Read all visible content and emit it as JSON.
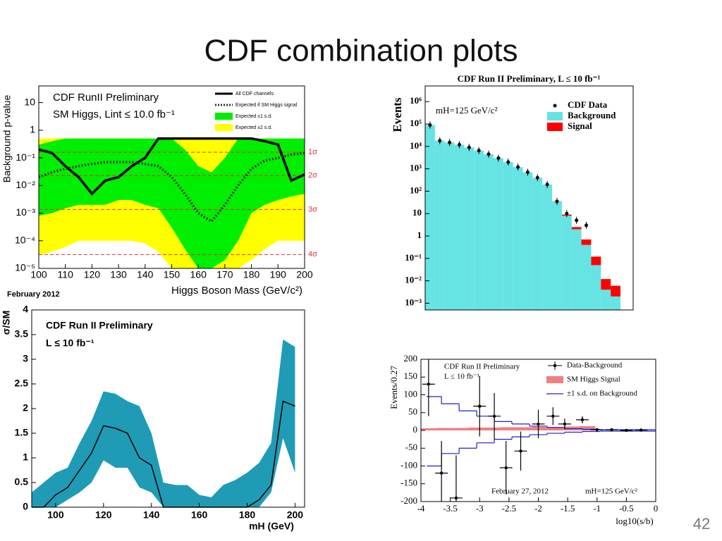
{
  "title": "CDF combination plots",
  "page_number": "42",
  "chart_data": [
    {
      "type": "line",
      "title": "CDF RunII Preliminary",
      "subtitle": "SM Higgs, Lint ≤ 10.0 fb⁻¹",
      "annotation": "February 2012",
      "x_label": "Higgs Boson Mass (GeV/c²)",
      "y_label": "Background p-value",
      "log_y": true,
      "x": [
        100,
        105,
        110,
        115,
        120,
        125,
        130,
        135,
        140,
        145,
        150,
        155,
        160,
        165,
        170,
        175,
        180,
        185,
        190,
        195,
        200
      ],
      "xlim": [
        100,
        200
      ],
      "xticks": [
        100,
        110,
        120,
        130,
        140,
        150,
        160,
        170,
        180,
        190,
        200
      ],
      "ylim": [
        1e-05,
        40
      ],
      "yticks": [
        {
          "value": 1e-05,
          "label": "10⁻⁵"
        },
        {
          "value": 0.0001,
          "label": "10⁻⁴"
        },
        {
          "value": 0.001,
          "label": "10⁻³"
        },
        {
          "value": 0.01,
          "label": "10⁻²"
        },
        {
          "value": 0.1,
          "label": "10⁻¹"
        },
        1,
        10
      ],
      "series": [
        {
          "name": "All CDF channels",
          "color": "#000000",
          "style": "solid",
          "values": [
            0.2,
            0.15,
            0.05,
            0.02,
            0.005,
            0.015,
            0.02,
            0.05,
            0.1,
            0.5,
            0.5,
            0.5,
            0.5,
            0.5,
            0.5,
            0.5,
            0.5,
            0.4,
            0.3,
            0.015,
            0.025
          ]
        },
        {
          "name": "Expected if SM Higgs signal",
          "color": "#333333",
          "style": "dotted",
          "values": [
            0.02,
            0.03,
            0.04,
            0.05,
            0.06,
            0.07,
            0.07,
            0.07,
            0.06,
            0.05,
            0.02,
            0.005,
            0.001,
            0.0005,
            0.002,
            0.01,
            0.04,
            0.08,
            0.1,
            0.13,
            0.15
          ]
        }
      ],
      "bands": [
        {
          "name": "Expected ±1 s.d.",
          "color": "#00ee00",
          "lower": [
            0.0008,
            0.001,
            0.0015,
            0.002,
            0.002,
            0.002,
            0.003,
            0.003,
            0.002,
            0.0015,
            0.0003,
            5e-05,
            1e-05,
            1e-05,
            2e-05,
            0.0001,
            0.001,
            0.002,
            0.003,
            0.004,
            0.005
          ],
          "upper": [
            0.3,
            0.4,
            0.5,
            0.5,
            0.5,
            0.5,
            0.5,
            0.5,
            0.5,
            0.5,
            0.5,
            0.2,
            0.05,
            0.03,
            0.1,
            0.5,
            0.5,
            0.5,
            0.5,
            0.5,
            0.5
          ]
        },
        {
          "name": "Expected ±2 s.d.",
          "color": "#ffff00",
          "lower": [
            3e-05,
            4e-05,
            6e-05,
            0.0001,
            0.0001,
            0.0001,
            0.0001,
            0.0001,
            8e-05,
            4e-05,
            1e-05,
            1e-05,
            1e-05,
            1e-05,
            1e-05,
            1e-05,
            2e-05,
            5e-05,
            0.0001,
            0.0001,
            0.0001
          ],
          "upper": [
            0.5,
            0.5,
            0.5,
            0.5,
            0.5,
            0.5,
            0.5,
            0.5,
            0.5,
            0.5,
            0.5,
            0.5,
            0.5,
            0.5,
            0.5,
            0.5,
            0.5,
            0.5,
            0.5,
            0.5,
            0.5
          ]
        }
      ],
      "reference_lines": [
        {
          "value": 0.159,
          "label": "1σ"
        },
        {
          "value": 0.0228,
          "label": "2σ"
        },
        {
          "value": 0.00135,
          "label": "3σ"
        },
        {
          "value": 3.17e-05,
          "label": "4σ"
        }
      ],
      "reference_color": "#e03030"
    },
    {
      "type": "histogram",
      "title": "CDF Run II Preliminary, L ≤ 10 fb⁻¹",
      "annotation": "mH=125 GeV/c²",
      "y_label": "Events",
      "log_y": true,
      "categories": [
        null,
        null,
        null,
        null,
        null,
        null,
        null,
        null,
        null,
        null,
        null,
        null,
        null,
        null,
        null,
        null,
        null,
        null,
        null,
        null
      ],
      "ylim": [
        0.0005,
        5000000
      ],
      "yticks": [
        {
          "value": 0.001,
          "label": "10⁻³"
        },
        {
          "value": 0.01,
          "label": "10⁻²"
        },
        {
          "value": 0.1,
          "label": "10⁻¹"
        },
        1,
        10,
        {
          "value": 100,
          "label": "10²"
        },
        {
          "value": 1000,
          "label": "10³"
        },
        {
          "value": 10000,
          "label": "10⁴"
        },
        {
          "value": 100000,
          "label": "10⁵"
        },
        {
          "value": 1000000,
          "label": "10⁶"
        }
      ],
      "series": [
        {
          "name": "CDF Data",
          "color": "#000000",
          "values": [
            90000,
            18000,
            15000,
            12000,
            9000,
            6500,
            4500,
            3000,
            2000,
            1200,
            700,
            400,
            200,
            35,
            10,
            5,
            3,
            null,
            null,
            null
          ]
        },
        {
          "name": "Background",
          "color": "#66e3e3",
          "values": [
            90000,
            18000,
            15000,
            12000,
            9000,
            6500,
            4500,
            3000,
            2000,
            1200,
            700,
            400,
            200,
            35,
            8,
            2,
            0.4,
            0.05,
            0.004,
            0.002
          ]
        },
        {
          "name": "Signal",
          "color": "#ff0000",
          "values": [
            0,
            0,
            0,
            0,
            0,
            0,
            0,
            0,
            0,
            0,
            0,
            0,
            0,
            0.5,
            1,
            0.5,
            0.3,
            0.07,
            0.008,
            0.004
          ]
        }
      ]
    },
    {
      "type": "band",
      "title": "CDF Run II Preliminary",
      "subtitle": "L ≤ 10 fb⁻¹",
      "x_label": "mH (GeV)",
      "y_label": "σ/SM",
      "x": [
        90,
        95,
        100,
        105,
        110,
        115,
        120,
        125,
        130,
        135,
        140,
        145,
        150,
        155,
        160,
        165,
        170,
        175,
        180,
        185,
        190,
        195,
        200
      ],
      "xlim": [
        90,
        204
      ],
      "xticks": [
        100,
        120,
        140,
        160,
        180,
        200
      ],
      "ylim": [
        0,
        4
      ],
      "yticks": [
        0,
        0.5,
        1,
        1.5,
        2,
        2.5,
        3,
        3.5,
        4
      ],
      "median": {
        "color": "#000000",
        "values": [
          0,
          0,
          0.25,
          0.4,
          0.75,
          1.1,
          1.65,
          1.6,
          1.5,
          1.0,
          0.85,
          0,
          0,
          0,
          0,
          0,
          0,
          0,
          0,
          0.15,
          0.45,
          2.15,
          2.05
        ]
      },
      "band": {
        "color": "#1f9bb5",
        "lower": [
          0,
          0,
          0,
          0.15,
          0.3,
          0.5,
          0.95,
          0.8,
          0.8,
          0.4,
          0.3,
          0,
          0,
          0,
          0,
          0,
          0,
          0,
          0,
          0,
          0.3,
          1.4,
          0.7
        ],
        "upper": [
          0.3,
          0.5,
          0.7,
          0.8,
          1.3,
          1.75,
          2.35,
          2.3,
          2.15,
          2.05,
          1.5,
          0.5,
          0.45,
          0.45,
          0.25,
          0.2,
          0.45,
          0.55,
          0.7,
          0.9,
          1.3,
          3.4,
          3.25
        ]
      }
    },
    {
      "type": "errorbar",
      "title": "CDF Run II Preliminary",
      "subtitle": "L ≤ 10 fb⁻¹",
      "annotation": "February 27, 2012",
      "annotation2": "mH=125 GeV/c²",
      "x_label": "log10(s/b)",
      "y_label": "Events/0.27",
      "xlim": [
        -4,
        0
      ],
      "xticks": [
        -4,
        -3.5,
        -3,
        -2.5,
        -2,
        -1.5,
        -1,
        -0.5,
        0
      ],
      "ylim": [
        -200,
        200
      ],
      "yticks": [
        -200,
        -150,
        -100,
        -50,
        0,
        50,
        100,
        150,
        200
      ],
      "data": {
        "name": "Data-Background",
        "color": "#000000",
        "x": [
          -3.87,
          -3.65,
          -3.4,
          -3.0,
          -2.75,
          -2.55,
          -2.3,
          -2.0,
          -1.75,
          -1.55,
          -1.25,
          -1.0,
          -0.75,
          -0.5,
          -0.25
        ],
        "values": [
          130,
          -120,
          -190,
          68,
          40,
          -105,
          -58,
          18,
          40,
          18,
          30,
          2,
          2,
          0,
          1
        ],
        "errors": [
          90,
          90,
          120,
          85,
          65,
          75,
          55,
          40,
          25,
          15,
          10,
          3,
          3,
          3,
          3
        ]
      },
      "signal": {
        "name": "SM Higgs Signal",
        "color": "#f08080",
        "bins": [
          -4,
          -3.73,
          -3.46,
          -3.19,
          -2.92,
          -2.65,
          -2.38,
          -2.11,
          -1.84,
          -1.57,
          -1.3,
          -1.03
        ],
        "values": [
          6,
          7,
          7,
          8,
          8,
          9,
          9,
          10,
          10,
          11,
          12
        ]
      },
      "sd": {
        "name": "±1 s.d. on Background",
        "color": "#2020c0",
        "bins": [
          -3.9,
          -3.65,
          -3.35,
          -3.05,
          -2.75,
          -2.45,
          -2.15,
          -1.85,
          -1.55,
          -1.25,
          -0.95,
          0
        ],
        "upper": [
          95,
          75,
          55,
          40,
          25,
          18,
          12,
          8,
          5,
          3,
          2
        ],
        "lower": [
          -100,
          -65,
          -50,
          -35,
          -25,
          -18,
          -12,
          -8,
          -5,
          -3,
          -2
        ]
      }
    }
  ]
}
